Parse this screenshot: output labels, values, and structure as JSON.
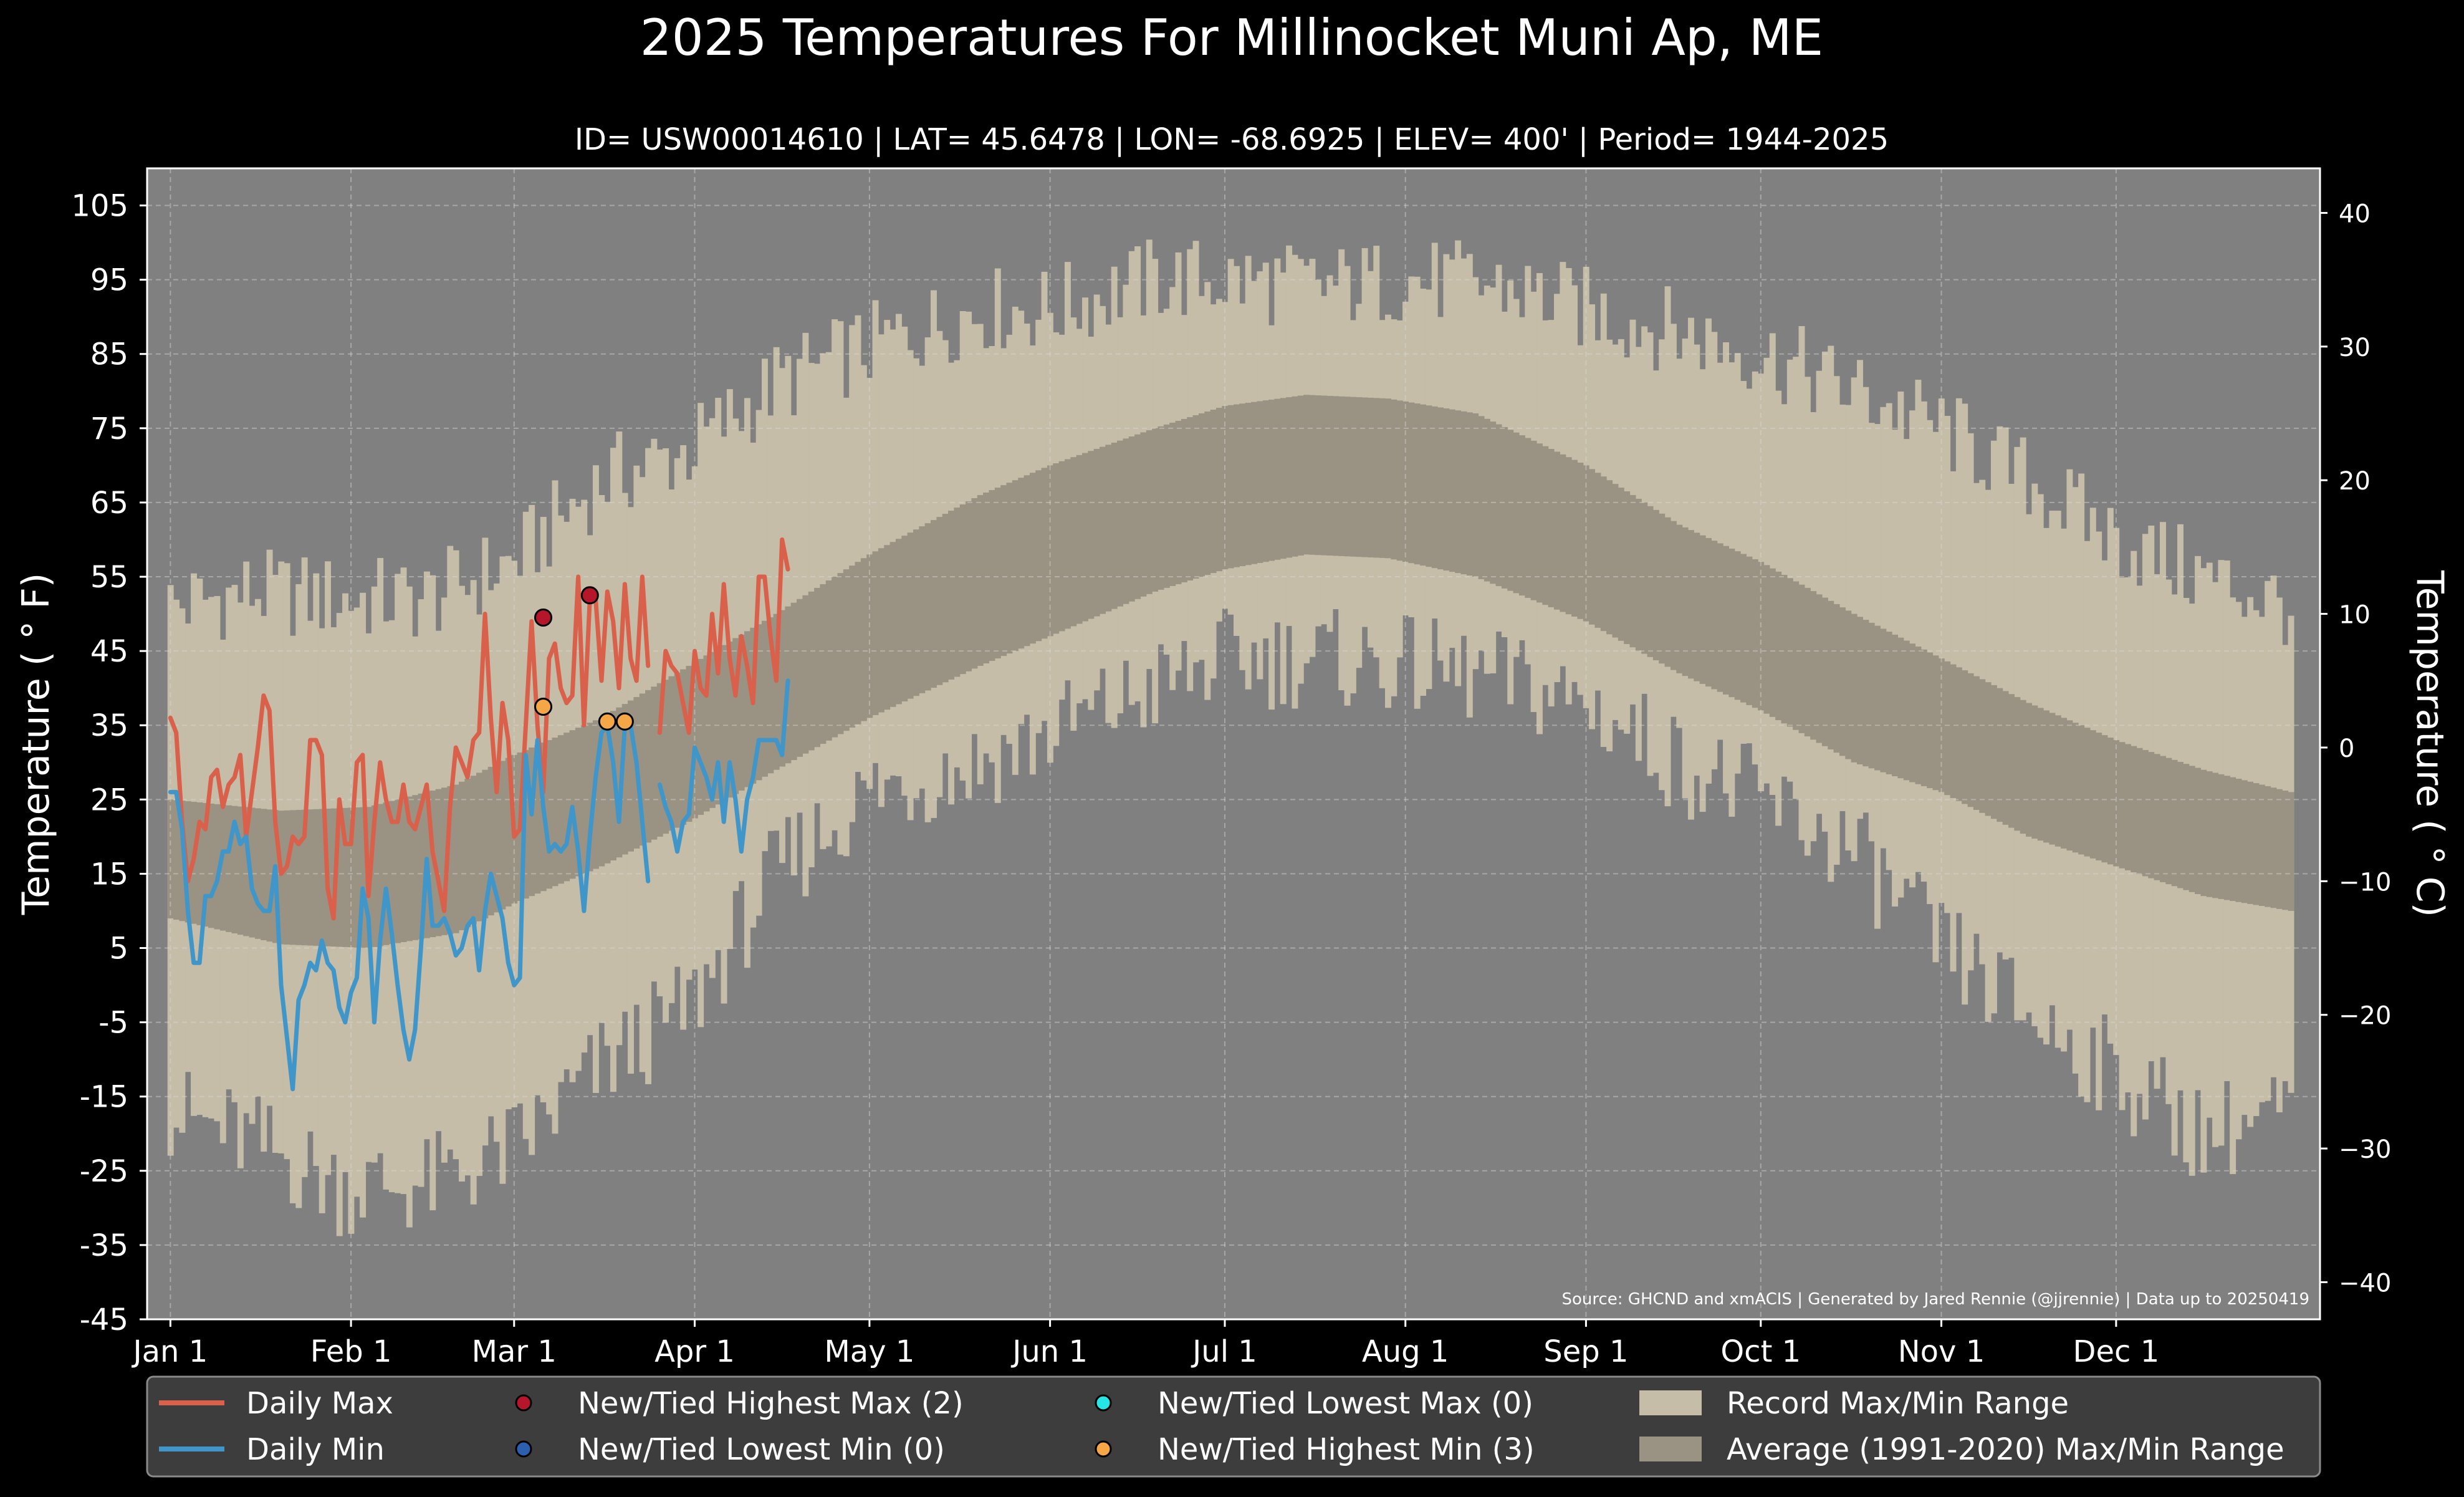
{
  "chart_data": {
    "type": "line",
    "title": "2025 Temperatures For Millinocket Muni Ap, ME",
    "subtitle": "ID= USW00014610 | LAT= 45.6478 | LON= -68.6925 | ELEV= 400' | Period= 1944-2025",
    "ylabel_left": "Temperature ($^\\circ$F)",
    "ylabel_left_display": "Temperature ( ° F)",
    "ylabel_right_display": "Temperature ( ° C)",
    "source": "Source: GHCND and xmACIS | Generated by Jared Rennie (@jjrennie) | Data up to 20250419",
    "ylim_f": [
      -45,
      110
    ],
    "ylim_c": [
      -42.78,
      43.33
    ],
    "yticks_f": [
      105,
      95,
      85,
      75,
      65,
      55,
      45,
      35,
      25,
      15,
      5,
      -5,
      -15,
      -25,
      -35,
      -45
    ],
    "ytick_labels_f": [
      "105",
      "95",
      "85",
      "75",
      "65",
      "55",
      "45",
      "35",
      "25",
      "15",
      "5",
      "-5",
      "-15",
      "-25",
      "-35",
      "-45"
    ],
    "yticks_c": [
      40,
      30,
      20,
      10,
      0,
      -10,
      -20,
      -30,
      -40
    ],
    "ytick_labels_c": [
      "40",
      "30",
      "20",
      "10",
      "0",
      "−10",
      "−20",
      "−30",
      "−40"
    ],
    "xticks": [
      {
        "day": 1,
        "label": "Jan 1"
      },
      {
        "day": 32,
        "label": "Feb 1"
      },
      {
        "day": 60,
        "label": "Mar 1"
      },
      {
        "day": 91,
        "label": "Apr 1"
      },
      {
        "day": 121,
        "label": "May 1"
      },
      {
        "day": 152,
        "label": "Jun 1"
      },
      {
        "day": 182,
        "label": "Jul 1"
      },
      {
        "day": 213,
        "label": "Aug 1"
      },
      {
        "day": 244,
        "label": "Sep 1"
      },
      {
        "day": 274,
        "label": "Oct 1"
      },
      {
        "day": 305,
        "label": "Nov 1"
      },
      {
        "day": 335,
        "label": "Dec 1"
      }
    ],
    "xlim_day": [
      -3,
      370
    ],
    "grid": true,
    "legend_position": "bottom",
    "legend": [
      {
        "key": "daily_max",
        "label": "Daily Max",
        "kind": "line",
        "color": "#d9604a"
      },
      {
        "key": "daily_min",
        "label": "Daily Min",
        "kind": "line",
        "color": "#4096c8"
      },
      {
        "key": "new_high_max",
        "label": "New/Tied Highest Max (2)",
        "kind": "marker",
        "color": "#b5162a"
      },
      {
        "key": "new_low_min",
        "label": "New/Tied Lowest Min (0)",
        "kind": "marker",
        "color": "#2c5fb0"
      },
      {
        "key": "new_low_max",
        "label": "New/Tied Lowest Max (0)",
        "kind": "marker",
        "color": "#27e5e5"
      },
      {
        "key": "new_high_min",
        "label": "New/Tied Highest Min (3)",
        "kind": "marker",
        "color": "#f5a646"
      },
      {
        "key": "record_range",
        "label": "Record Max/Min Range",
        "kind": "patch",
        "color": "#c5bda7"
      },
      {
        "key": "average_range",
        "label": "Average (1991-2020) Max/Min Range",
        "kind": "patch",
        "color": "#9a9282"
      }
    ],
    "colors": {
      "plot_background": "#808080",
      "record_range": "#c5bda7",
      "average_range": "#9a9282",
      "daily_max": "#d9604a",
      "daily_min": "#4096c8",
      "page_background": "#000000",
      "legend_background": "#3d3d3d"
    },
    "record_high_anchors": {
      "days": [
        1,
        15,
        30,
        45,
        60,
        75,
        90,
        105,
        121,
        140,
        152,
        170,
        182,
        200,
        213,
        230,
        244,
        260,
        274,
        290,
        305,
        320,
        335,
        350,
        365
      ],
      "values": [
        51,
        53,
        52,
        52,
        57,
        68,
        72,
        81,
        86,
        91,
        91,
        95,
        95,
        94,
        95,
        94,
        91,
        88,
        85,
        80,
        75,
        68,
        60,
        55,
        51
      ]
    },
    "record_low_anchors": {
      "days": [
        1,
        15,
        30,
        45,
        60,
        75,
        90,
        105,
        121,
        140,
        152,
        170,
        182,
        200,
        213,
        230,
        244,
        260,
        274,
        290,
        305,
        320,
        335,
        350,
        365
      ],
      "values": [
        -17,
        -21,
        -27,
        -27,
        -22,
        -11,
        -3,
        15,
        26,
        30,
        34,
        40,
        44,
        44,
        43,
        41,
        38,
        30,
        25,
        18,
        5,
        -4,
        -12,
        -20,
        -17
      ]
    },
    "average_high_anchors": {
      "days": [
        1,
        20,
        35,
        50,
        60,
        75,
        90,
        105,
        121,
        140,
        152,
        170,
        182,
        196,
        210,
        225,
        244,
        260,
        274,
        290,
        305,
        320,
        335,
        350,
        365
      ],
      "values": [
        25,
        23.5,
        24,
        27,
        31,
        36,
        43,
        50,
        58,
        66,
        70,
        75,
        78,
        79.5,
        79,
        77,
        70,
        62,
        57,
        50,
        44,
        38,
        33,
        29,
        26
      ]
    },
    "average_low_anchors": {
      "days": [
        1,
        20,
        35,
        50,
        60,
        75,
        90,
        105,
        121,
        140,
        152,
        170,
        182,
        196,
        210,
        225,
        244,
        260,
        274,
        290,
        305,
        320,
        335,
        350,
        365
      ],
      "values": [
        9,
        5.5,
        5,
        7,
        11,
        16,
        22,
        29,
        36,
        43,
        47,
        53,
        56,
        58,
        57.5,
        55,
        49,
        42,
        37,
        30,
        26,
        20,
        16,
        12,
        10
      ]
    },
    "series": [
      {
        "name": "Daily Max",
        "start_day": 1,
        "values": [
          36,
          34,
          22,
          14,
          17,
          22,
          21,
          28,
          29,
          24,
          27,
          28,
          31,
          20,
          26,
          32,
          39,
          37,
          22,
          15,
          16,
          20,
          19,
          20,
          33,
          33,
          31,
          13,
          9,
          25,
          19,
          19,
          30,
          31,
          12,
          22,
          30,
          25,
          22,
          22,
          27,
          22,
          21,
          24,
          27,
          18,
          14,
          10,
          24,
          32,
          30,
          28,
          33,
          34,
          50,
          36,
          26,
          38,
          33,
          20,
          21,
          35,
          49,
          35,
          26,
          44,
          46,
          40,
          38,
          39,
          55,
          35,
          52,
          52,
          41,
          53,
          49,
          40,
          54,
          44,
          41,
          55,
          43,
          null,
          34,
          45,
          43,
          42,
          38,
          34,
          45,
          40,
          39,
          50,
          42,
          54,
          44,
          39,
          47,
          43,
          38,
          55,
          55,
          47,
          41,
          60,
          56
        ]
      },
      {
        "name": "Daily Min",
        "start_day": 1,
        "values": [
          26,
          26,
          21,
          10,
          3,
          3,
          12,
          12,
          14,
          18,
          18,
          22,
          19,
          20,
          13,
          11,
          10,
          10,
          16,
          0,
          -7,
          -14,
          -2,
          0,
          3,
          2,
          6,
          3,
          2,
          -3,
          -5,
          -1,
          1,
          13,
          9,
          -5,
          6,
          13,
          7,
          0,
          -6,
          -10,
          -6,
          5,
          17,
          8,
          8,
          9,
          7,
          4,
          5,
          8,
          9,
          2,
          10,
          15,
          12,
          9,
          3,
          0,
          1,
          31,
          23,
          33,
          24,
          18,
          19,
          18,
          19,
          24,
          18,
          10,
          20,
          28,
          34,
          35,
          30,
          22,
          35,
          35,
          30,
          22,
          14,
          null,
          27,
          24,
          22,
          18,
          22,
          23,
          32,
          30,
          28,
          25,
          30,
          22,
          30,
          25,
          18,
          25,
          28,
          33,
          33,
          33,
          33,
          31,
          41
        ]
      }
    ],
    "record_markers": {
      "new_high_max": [
        {
          "day": 65,
          "value": 49.5
        },
        {
          "day": 73,
          "value": 52.5
        }
      ],
      "new_high_min": [
        {
          "day": 65,
          "value": 37.5
        },
        {
          "day": 76,
          "value": 35.5
        },
        {
          "day": 79,
          "value": 35.5
        }
      ],
      "new_low_max": [],
      "new_low_min": []
    }
  }
}
